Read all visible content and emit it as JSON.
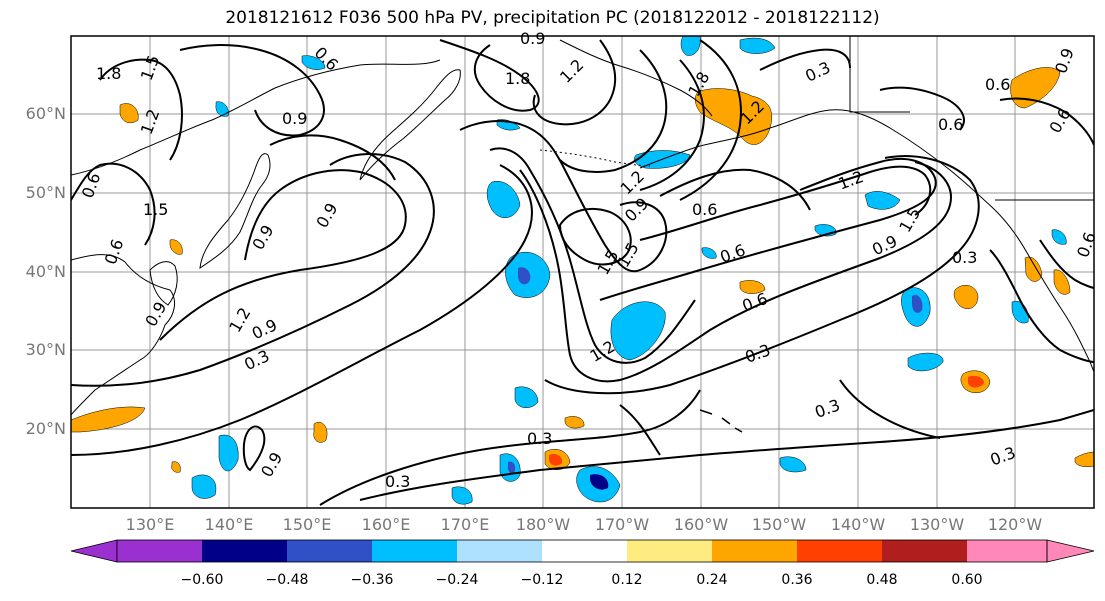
{
  "title": "2018121612 F036 500 hPa PV, precipitation PC (2018122012 - 2018122112)",
  "lat_labels": [
    "60°N",
    "50°N",
    "40°N",
    "30°N",
    "20°N"
  ],
  "lon_labels": [
    "130°E",
    "140°E",
    "150°E",
    "160°E",
    "170°E",
    "180°W",
    "170°W",
    "160°W",
    "150°W",
    "140°W",
    "130°W",
    "120°W"
  ],
  "contour_labels": [
    "1.8",
    "1.5",
    "1.2",
    "0.9",
    "0.6",
    "0.3",
    "0.9",
    "1.5",
    "1.8",
    "0.6",
    "0.9",
    "0.3",
    "0.6",
    "0.6",
    "0.6",
    "1.5",
    "0.9",
    "0.6",
    "1.2",
    "0.9",
    "1.2",
    "0.6",
    "1.5",
    "0.9",
    "1.2",
    "1.5",
    "0.6",
    "0.9",
    "0.3",
    "1.2",
    "0.9",
    "1.2",
    "0.6",
    "0.3",
    "0.3",
    "0.3",
    "0.3",
    "0.3",
    "0.6",
    "0.9",
    "1.8",
    "1.2",
    "0.9"
  ],
  "colorbar": {
    "colors": [
      "#9b30d0",
      "#000088",
      "#3050c8",
      "#00bfff",
      "#aee0ff",
      "#ffffff",
      "#ffec80",
      "#ffa500",
      "#ff4000",
      "#b01e1e",
      "#ff88b8"
    ],
    "ticks": [
      "−0.60",
      "−0.48",
      "−0.36",
      "−0.24",
      "−0.12",
      "0.12",
      "0.24",
      "0.36",
      "0.48",
      "0.60"
    ]
  },
  "colors": {
    "contour": "#000000",
    "grid": "#999999",
    "coast": "#000000"
  }
}
